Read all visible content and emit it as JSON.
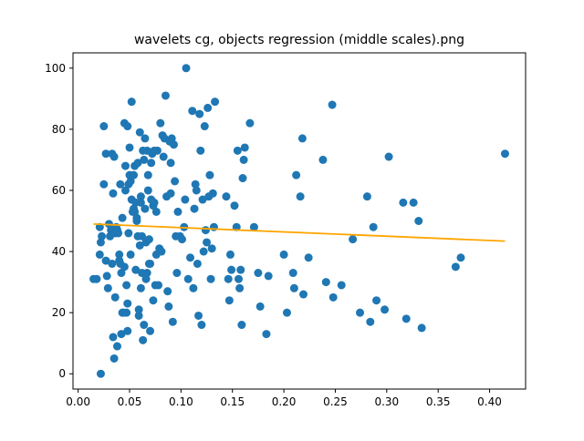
{
  "chart_data": {
    "type": "scatter",
    "title": "wavelets cg, objects regression (middle scales).png",
    "xlabel": "",
    "ylabel": "",
    "xlim": [
      -0.005,
      0.435
    ],
    "ylim": [
      -5,
      105
    ],
    "xticks": [
      0.0,
      0.05,
      0.1,
      0.15,
      0.2,
      0.25,
      0.3,
      0.35,
      0.4
    ],
    "xtick_labels": [
      "0.00",
      "0.05",
      "0.10",
      "0.15",
      "0.20",
      "0.25",
      "0.30",
      "0.35",
      "0.40"
    ],
    "yticks": [
      0,
      20,
      40,
      60,
      80,
      100
    ],
    "ytick_labels": [
      "0",
      "20",
      "40",
      "60",
      "80",
      "100"
    ],
    "grid": false,
    "point_color": "#1f77b4",
    "line_color": "#ffa500",
    "regression_line": {
      "x": [
        0.015,
        0.415
      ],
      "y": [
        49.0,
        43.4
      ]
    },
    "points": [
      [
        0.015,
        31
      ],
      [
        0.018,
        31
      ],
      [
        0.021,
        39
      ],
      [
        0.021,
        48
      ],
      [
        0.022,
        0
      ],
      [
        0.022,
        43
      ],
      [
        0.023,
        45
      ],
      [
        0.025,
        81
      ],
      [
        0.025,
        62
      ],
      [
        0.027,
        37
      ],
      [
        0.027,
        72
      ],
      [
        0.028,
        32
      ],
      [
        0.029,
        28
      ],
      [
        0.03,
        49
      ],
      [
        0.031,
        45
      ],
      [
        0.032,
        47
      ],
      [
        0.033,
        72
      ],
      [
        0.033,
        36
      ],
      [
        0.034,
        12
      ],
      [
        0.034,
        59
      ],
      [
        0.035,
        71
      ],
      [
        0.035,
        5
      ],
      [
        0.036,
        25
      ],
      [
        0.036,
        46
      ],
      [
        0.037,
        48
      ],
      [
        0.038,
        9
      ],
      [
        0.038,
        47
      ],
      [
        0.039,
        46
      ],
      [
        0.04,
        37
      ],
      [
        0.04,
        39
      ],
      [
        0.041,
        36
      ],
      [
        0.041,
        62
      ],
      [
        0.042,
        33
      ],
      [
        0.042,
        13
      ],
      [
        0.043,
        51
      ],
      [
        0.043,
        20
      ],
      [
        0.044,
        20
      ],
      [
        0.045,
        82
      ],
      [
        0.045,
        35
      ],
      [
        0.046,
        60
      ],
      [
        0.046,
        68
      ],
      [
        0.047,
        29
      ],
      [
        0.047,
        20
      ],
      [
        0.048,
        23
      ],
      [
        0.048,
        81
      ],
      [
        0.048,
        14
      ],
      [
        0.049,
        46
      ],
      [
        0.049,
        62
      ],
      [
        0.05,
        65
      ],
      [
        0.05,
        74
      ],
      [
        0.051,
        39
      ],
      [
        0.051,
        63
      ],
      [
        0.052,
        89
      ],
      [
        0.052,
        57
      ],
      [
        0.053,
        53
      ],
      [
        0.054,
        65
      ],
      [
        0.054,
        54
      ],
      [
        0.055,
        53
      ],
      [
        0.055,
        68
      ],
      [
        0.056,
        56
      ],
      [
        0.056,
        34
      ],
      [
        0.057,
        51
      ],
      [
        0.057,
        50
      ],
      [
        0.058,
        45
      ],
      [
        0.058,
        69
      ],
      [
        0.059,
        19
      ],
      [
        0.059,
        21
      ],
      [
        0.06,
        79
      ],
      [
        0.06,
        42
      ],
      [
        0.061,
        56
      ],
      [
        0.061,
        28
      ],
      [
        0.061,
        58
      ],
      [
        0.062,
        45
      ],
      [
        0.062,
        33
      ],
      [
        0.063,
        11
      ],
      [
        0.063,
        73
      ],
      [
        0.064,
        16
      ],
      [
        0.064,
        70
      ],
      [
        0.065,
        77
      ],
      [
        0.065,
        54
      ],
      [
        0.066,
        31
      ],
      [
        0.066,
        43
      ],
      [
        0.067,
        33
      ],
      [
        0.067,
        73
      ],
      [
        0.068,
        60
      ],
      [
        0.068,
        65
      ],
      [
        0.069,
        36
      ],
      [
        0.069,
        44
      ],
      [
        0.07,
        14
      ],
      [
        0.07,
        36
      ],
      [
        0.071,
        57
      ],
      [
        0.071,
        69
      ],
      [
        0.072,
        72
      ],
      [
        0.073,
        24
      ],
      [
        0.073,
        55
      ],
      [
        0.074,
        56
      ],
      [
        0.074,
        73
      ],
      [
        0.075,
        29
      ],
      [
        0.076,
        39
      ],
      [
        0.076,
        53
      ],
      [
        0.077,
        73
      ],
      [
        0.078,
        29
      ],
      [
        0.079,
        41
      ],
      [
        0.08,
        82
      ],
      [
        0.081,
        40
      ],
      [
        0.082,
        78
      ],
      [
        0.083,
        71
      ],
      [
        0.084,
        77
      ],
      [
        0.085,
        91
      ],
      [
        0.086,
        58
      ],
      [
        0.087,
        27
      ],
      [
        0.088,
        22
      ],
      [
        0.089,
        76
      ],
      [
        0.09,
        59
      ],
      [
        0.09,
        69
      ],
      [
        0.091,
        77
      ],
      [
        0.092,
        17
      ],
      [
        0.093,
        75
      ],
      [
        0.094,
        63
      ],
      [
        0.095,
        45
      ],
      [
        0.096,
        33
      ],
      [
        0.097,
        53
      ],
      [
        0.099,
        45
      ],
      [
        0.101,
        44
      ],
      [
        0.103,
        48
      ],
      [
        0.104,
        57
      ],
      [
        0.105,
        100
      ],
      [
        0.107,
        31
      ],
      [
        0.109,
        38
      ],
      [
        0.111,
        86
      ],
      [
        0.112,
        28
      ],
      [
        0.113,
        54
      ],
      [
        0.114,
        62
      ],
      [
        0.115,
        60
      ],
      [
        0.116,
        36
      ],
      [
        0.117,
        19
      ],
      [
        0.118,
        85
      ],
      [
        0.119,
        73
      ],
      [
        0.12,
        16
      ],
      [
        0.121,
        57
      ],
      [
        0.122,
        40
      ],
      [
        0.123,
        81
      ],
      [
        0.124,
        47
      ],
      [
        0.125,
        43
      ],
      [
        0.126,
        87
      ],
      [
        0.127,
        58
      ],
      [
        0.128,
        65
      ],
      [
        0.129,
        31
      ],
      [
        0.13,
        41
      ],
      [
        0.131,
        59
      ],
      [
        0.132,
        48
      ],
      [
        0.133,
        89
      ],
      [
        0.144,
        58
      ],
      [
        0.146,
        31
      ],
      [
        0.147,
        24
      ],
      [
        0.148,
        39
      ],
      [
        0.149,
        34
      ],
      [
        0.152,
        55
      ],
      [
        0.154,
        48
      ],
      [
        0.155,
        73
      ],
      [
        0.156,
        31
      ],
      [
        0.157,
        28
      ],
      [
        0.158,
        34
      ],
      [
        0.159,
        16
      ],
      [
        0.16,
        64
      ],
      [
        0.161,
        70
      ],
      [
        0.162,
        74
      ],
      [
        0.167,
        82
      ],
      [
        0.171,
        48
      ],
      [
        0.175,
        33
      ],
      [
        0.177,
        22
      ],
      [
        0.183,
        13
      ],
      [
        0.185,
        32
      ],
      [
        0.2,
        39
      ],
      [
        0.203,
        20
      ],
      [
        0.209,
        33
      ],
      [
        0.21,
        28
      ],
      [
        0.212,
        65
      ],
      [
        0.216,
        58
      ],
      [
        0.218,
        77
      ],
      [
        0.219,
        26
      ],
      [
        0.224,
        38
      ],
      [
        0.238,
        70
      ],
      [
        0.241,
        30
      ],
      [
        0.247,
        88
      ],
      [
        0.248,
        25
      ],
      [
        0.256,
        29
      ],
      [
        0.267,
        44
      ],
      [
        0.274,
        20
      ],
      [
        0.281,
        58
      ],
      [
        0.284,
        17
      ],
      [
        0.287,
        48
      ],
      [
        0.29,
        24
      ],
      [
        0.298,
        21
      ],
      [
        0.302,
        71
      ],
      [
        0.316,
        56
      ],
      [
        0.319,
        18
      ],
      [
        0.326,
        56
      ],
      [
        0.331,
        50
      ],
      [
        0.334,
        15
      ],
      [
        0.367,
        35
      ],
      [
        0.372,
        38
      ],
      [
        0.415,
        72
      ]
    ]
  }
}
